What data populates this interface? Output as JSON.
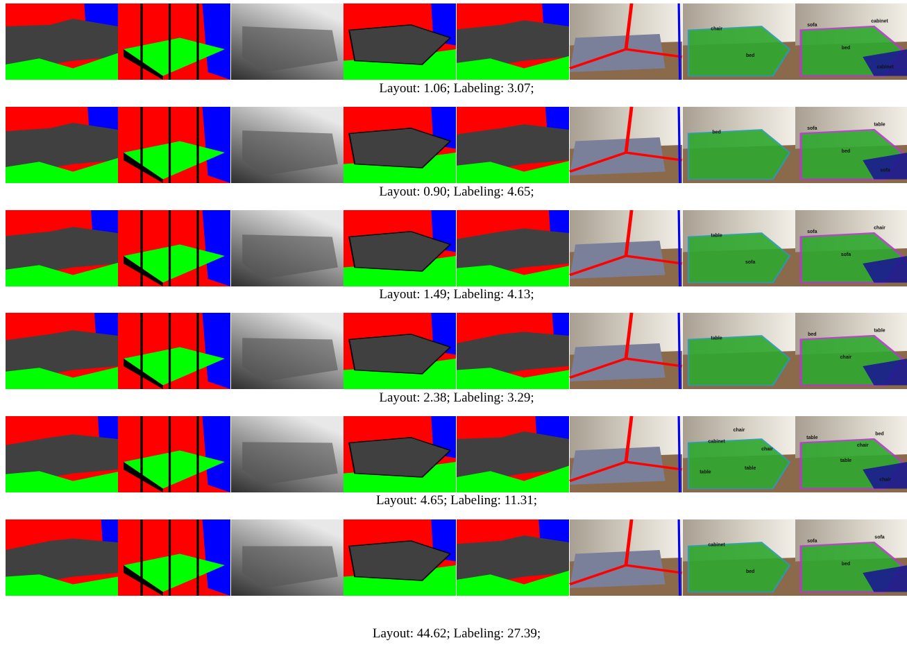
{
  "rows": [
    {
      "caption": "Layout: 1.06; Labeling: 3.07;",
      "labels_a": [
        "chair",
        "bed"
      ],
      "labels_b": [
        "sofa",
        "cabinet",
        "bed",
        "cabinet"
      ]
    },
    {
      "caption": "Layout: 0.90; Labeling: 4.65;",
      "labels_a": [
        "bed"
      ],
      "labels_b": [
        "sofa",
        "table",
        "bed",
        "sofa"
      ]
    },
    {
      "caption": "Layout: 1.49; Labeling: 4.13;",
      "labels_a": [
        "table",
        "sofa"
      ],
      "labels_b": [
        "sofa",
        "chair",
        "sofa"
      ]
    },
    {
      "caption": "Layout: 2.38; Labeling: 3.29;",
      "labels_a": [
        "table"
      ],
      "labels_b": [
        "bed",
        "table",
        "chair"
      ]
    },
    {
      "caption": "Layout: 4.65; Labeling: 11.31;",
      "labels_a": [
        "cabinet",
        "table",
        "table",
        "chair",
        "chair"
      ],
      "labels_b": [
        "table",
        "bed",
        "table",
        "chair",
        "chair"
      ]
    },
    {
      "caption": "Layout: 44.62; Labeling: 27.39;",
      "labels_a": [
        "cabinet",
        "bed"
      ],
      "labels_b": [
        "sofa",
        "sofa",
        "bed"
      ]
    }
  ]
}
